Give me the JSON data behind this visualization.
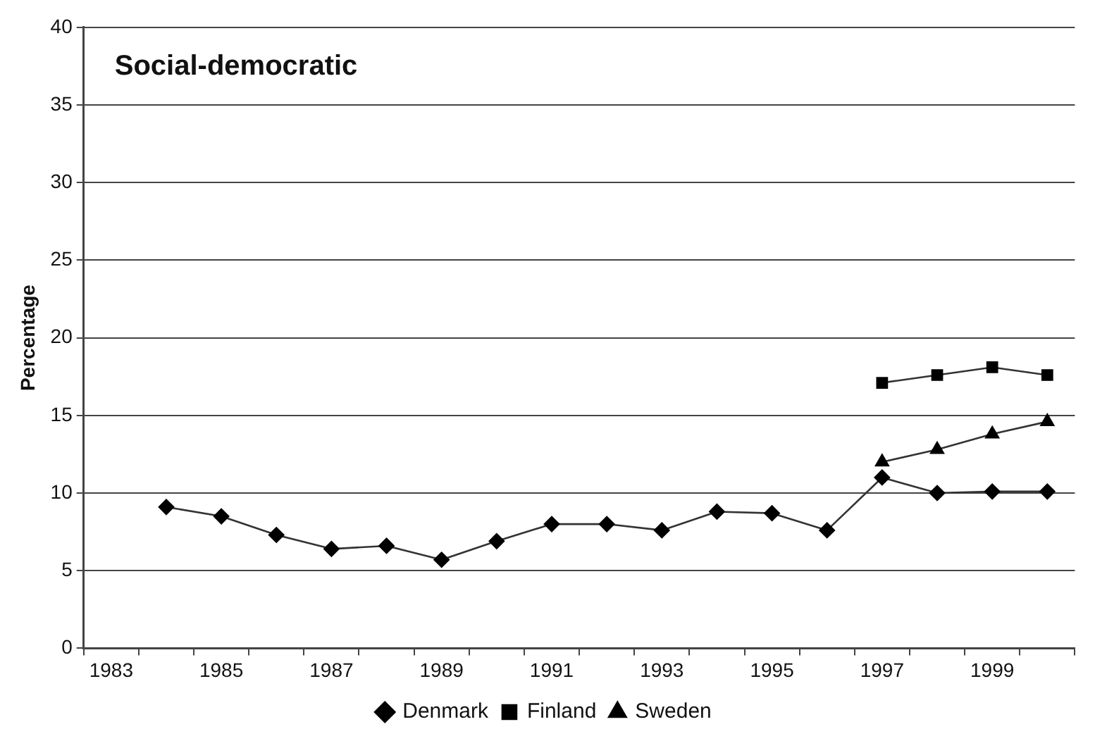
{
  "chart_data": {
    "type": "line",
    "title": "Social-democratic",
    "ylabel": "Percentage",
    "categories": [
      "1983",
      null,
      "1985",
      null,
      "1987",
      null,
      "1989",
      null,
      "1991",
      null,
      "1993",
      null,
      "1995",
      null,
      "1997",
      null,
      "1999",
      null
    ],
    "series": [
      {
        "name": "Denmark",
        "color": "#333333",
        "marker": "diamond",
        "values": [
          null,
          9.1,
          8.5,
          7.3,
          6.4,
          6.6,
          5.7,
          6.9,
          8.0,
          8.0,
          7.6,
          8.8,
          8.7,
          7.6,
          11.0,
          10.0,
          10.1,
          10.1
        ]
      },
      {
        "name": "Finland",
        "color": "#333333",
        "marker": "square",
        "values": [
          null,
          null,
          null,
          null,
          null,
          null,
          null,
          null,
          null,
          null,
          null,
          null,
          null,
          null,
          17.1,
          17.6,
          18.1,
          17.6
        ]
      },
      {
        "name": "Sweden",
        "color": "#333333",
        "marker": "triangle",
        "values": [
          null,
          null,
          null,
          null,
          null,
          null,
          null,
          null,
          null,
          null,
          null,
          null,
          null,
          null,
          12.0,
          12.8,
          13.8,
          14.6
        ]
      }
    ],
    "ylim": [
      0,
      40
    ],
    "yticks": [
      0,
      5,
      10,
      15,
      20,
      25,
      30,
      35,
      40
    ],
    "grid": "y",
    "legend": "bottom",
    "line_style": "solid"
  }
}
